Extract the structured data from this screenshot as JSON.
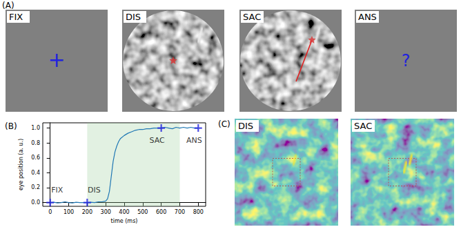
{
  "panels": {
    "A": {
      "label": "(A)",
      "frames": [
        "FIX",
        "DIS",
        "SAC",
        "ANS"
      ],
      "fixation_mark": "+",
      "answer_mark": "?"
    },
    "C": {
      "label": "(C)",
      "maps": [
        "DIS",
        "SAC"
      ]
    }
  },
  "chart_data": {
    "type": "line",
    "title": "(B)",
    "xlabel": "time (ms)",
    "ylabel": "eye position (a. u.)",
    "x": [
      0,
      20,
      40,
      60,
      80,
      100,
      120,
      140,
      160,
      180,
      200,
      220,
      240,
      260,
      280,
      300,
      310,
      320,
      330,
      340,
      350,
      360,
      370,
      380,
      400,
      420,
      440,
      460,
      480,
      500,
      520,
      540,
      560,
      580,
      600,
      620,
      640,
      660,
      680,
      700,
      720,
      740,
      760,
      780,
      800
    ],
    "values": [
      0,
      0.005,
      -0.005,
      0,
      0.01,
      0,
      -0.005,
      0.005,
      0,
      0,
      0,
      0.005,
      0,
      0.01,
      0.01,
      0.02,
      0.05,
      0.15,
      0.35,
      0.55,
      0.68,
      0.76,
      0.82,
      0.86,
      0.9,
      0.93,
      0.95,
      0.97,
      0.98,
      0.98,
      0.99,
      0.99,
      1.0,
      1.0,
      1.0,
      1.01,
      1.0,
      0.99,
      1.01,
      1.0,
      1.01,
      1.0,
      1.01,
      1.0,
      1.0
    ],
    "color": "#1f77b4",
    "xlim": [
      -40,
      840
    ],
    "xticks": [
      0,
      100,
      200,
      300,
      400,
      500,
      600,
      700,
      800
    ],
    "ylim": [
      -0.05,
      1.07
    ],
    "yticks": [
      {
        "value": 0,
        "label": "0.0"
      },
      {
        "value": 0.2,
        "label": "0.2"
      },
      {
        "value": 0.4,
        "label": "0.4"
      },
      {
        "value": 0.6,
        "label": "0.6"
      },
      {
        "value": 0.8,
        "label": "0.8"
      },
      {
        "value": 1.0,
        "label": "1.0"
      }
    ],
    "grid": false,
    "shaded_region": [
      200,
      700
    ],
    "annotations": [
      {
        "text": "FIX",
        "x": 0,
        "y": 0,
        "marker": "plus",
        "color": "#2222dd"
      },
      {
        "text": "DIS",
        "x": 200,
        "y": 0,
        "marker": "plus",
        "color": "#2222dd"
      },
      {
        "text": "SAC",
        "x": 600,
        "y": 1.0,
        "marker": "plus",
        "color": "#2222dd"
      },
      {
        "text": "ANS",
        "x": 800,
        "y": 1.0,
        "marker": "plus",
        "color": "#2222dd"
      }
    ]
  }
}
